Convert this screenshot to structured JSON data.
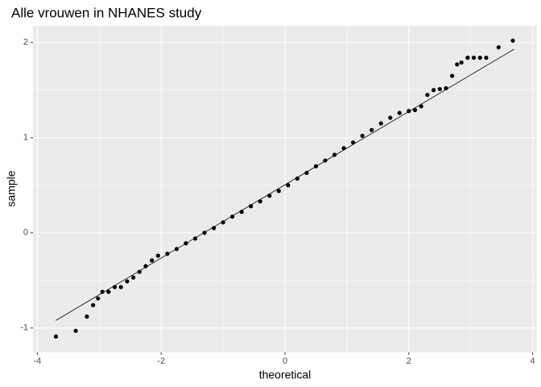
{
  "chart_data": {
    "type": "scatter",
    "title": "Alle vrouwen in NHANES study",
    "x_label": "theoretical",
    "y_label": "sample",
    "x": [
      -3.7,
      -3.38,
      -3.2,
      -3.1,
      -3.02,
      -2.95,
      -2.85,
      -2.75,
      -2.65,
      -2.55,
      -2.45,
      -2.35,
      -2.25,
      -2.15,
      -2.05,
      -1.9,
      -1.75,
      -1.6,
      -1.45,
      -1.3,
      -1.15,
      -1.0,
      -0.85,
      -0.7,
      -0.55,
      -0.4,
      -0.25,
      -0.1,
      0.05,
      0.2,
      0.35,
      0.5,
      0.65,
      0.8,
      0.95,
      1.1,
      1.25,
      1.4,
      1.55,
      1.7,
      1.85,
      2.0,
      2.1,
      2.2,
      2.3,
      2.4,
      2.5,
      2.6,
      2.7,
      2.78,
      2.85,
      2.95,
      3.05,
      3.15,
      3.25,
      3.45,
      3.68
    ],
    "values": [
      -1.09,
      -1.03,
      -0.88,
      -0.76,
      -0.69,
      -0.62,
      -0.62,
      -0.57,
      -0.57,
      -0.51,
      -0.47,
      -0.41,
      -0.35,
      -0.29,
      -0.24,
      -0.22,
      -0.17,
      -0.11,
      -0.06,
      0.0,
      0.05,
      0.11,
      0.17,
      0.22,
      0.28,
      0.33,
      0.39,
      0.44,
      0.5,
      0.57,
      0.63,
      0.7,
      0.76,
      0.82,
      0.89,
      0.95,
      1.02,
      1.08,
      1.15,
      1.21,
      1.26,
      1.28,
      1.29,
      1.33,
      1.45,
      1.5,
      1.51,
      1.52,
      1.65,
      1.77,
      1.79,
      1.84,
      1.84,
      1.84,
      1.84,
      1.95,
      2.02
    ],
    "color": "#000000",
    "line": {
      "x": [
        -3.7,
        3.7
      ],
      "y": [
        -0.92,
        1.93
      ],
      "color": "#000000"
    },
    "xlim": [
      -4.07,
      4.07
    ],
    "xticks": [
      -4,
      -2,
      0,
      2,
      4
    ],
    "ylim": [
      -1.256,
      2.176
    ],
    "yticks": [
      -1,
      0,
      1,
      2
    ],
    "grid": true
  }
}
